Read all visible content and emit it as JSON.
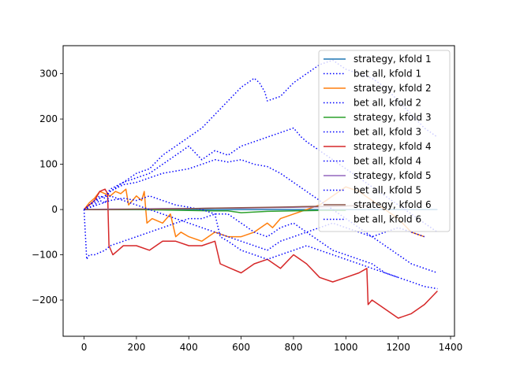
{
  "chart_data": {
    "type": "line",
    "title": "",
    "xlabel": "",
    "ylabel": "",
    "xlim": [
      -80,
      1415
    ],
    "ylim": [
      -280,
      362
    ],
    "xticks": [
      0,
      200,
      400,
      600,
      800,
      1000,
      1200,
      1400
    ],
    "yticks": [
      -200,
      -100,
      0,
      100,
      200,
      300
    ],
    "xtick_labels": [
      "0",
      "200",
      "400",
      "600",
      "800",
      "1000",
      "1200",
      "1400"
    ],
    "ytick_labels": [
      "−200",
      "−100",
      "0",
      "100",
      "200",
      "300"
    ],
    "grid": false,
    "legend_position": "top-right",
    "series": [
      {
        "name": "strategy, kfold 1",
        "color": "#1f77b4",
        "style": "solid",
        "x": [
          0,
          100,
          200,
          400,
          600,
          800,
          1000,
          1200,
          1350
        ],
        "y": [
          0,
          0,
          0,
          0,
          0,
          0,
          0,
          0,
          0
        ]
      },
      {
        "name": "bet all, kfold 1",
        "color": "#0000ff",
        "style": "dotted",
        "x": [
          0,
          20,
          40,
          60,
          80,
          100,
          150,
          200,
          250,
          300,
          350,
          400,
          450,
          500,
          550,
          600,
          650,
          670,
          690,
          700,
          750,
          800,
          850,
          900,
          950,
          1000,
          1050,
          1100,
          1150,
          1200,
          1250,
          1300,
          1350
        ],
        "y": [
          0,
          10,
          20,
          30,
          25,
          40,
          60,
          80,
          90,
          120,
          140,
          160,
          180,
          210,
          240,
          270,
          290,
          280,
          260,
          240,
          250,
          280,
          300,
          320,
          330,
          310,
          300,
          290,
          270,
          240,
          210,
          180,
          160
        ]
      },
      {
        "name": "strategy, kfold 2",
        "color": "#ff7f0e",
        "style": "solid",
        "x": [
          0,
          20,
          40,
          60,
          80,
          100,
          120,
          140,
          160,
          170,
          200,
          220,
          230,
          240,
          260,
          300,
          330,
          350,
          370,
          400,
          450,
          500,
          550,
          600,
          650,
          700,
          720,
          750,
          800,
          850,
          900,
          950,
          1000,
          1050,
          1100,
          1150,
          1200,
          1250,
          1300
        ],
        "y": [
          0,
          15,
          25,
          40,
          35,
          30,
          40,
          35,
          45,
          10,
          30,
          20,
          40,
          -30,
          -20,
          -30,
          -10,
          -60,
          -50,
          -60,
          -70,
          -50,
          -60,
          -60,
          -50,
          -30,
          -40,
          -20,
          -10,
          0,
          10,
          30,
          50,
          40,
          20,
          0,
          -20,
          -50,
          -60
        ]
      },
      {
        "name": "bet all, kfold 2",
        "color": "#0000ff",
        "style": "dotted",
        "x": [
          0,
          20,
          40,
          60,
          80,
          100,
          150,
          200,
          250,
          300,
          350,
          400,
          450,
          500,
          550,
          600,
          650,
          700,
          750,
          800,
          830,
          850,
          900,
          950,
          1000,
          1050,
          1100,
          1150,
          1200,
          1250,
          1300,
          1350
        ],
        "y": [
          0,
          10,
          15,
          25,
          30,
          45,
          60,
          70,
          80,
          100,
          120,
          140,
          110,
          130,
          120,
          140,
          150,
          160,
          170,
          180,
          160,
          150,
          130,
          110,
          90,
          70,
          50,
          30,
          10,
          -10,
          -30,
          -50
        ]
      },
      {
        "name": "strategy, kfold 3",
        "color": "#2ca02c",
        "style": "solid",
        "x": [
          0,
          100,
          200,
          300,
          400,
          500,
          550,
          600,
          700,
          800,
          900,
          1000
        ],
        "y": [
          0,
          0,
          0,
          -1,
          -2,
          -3,
          -3,
          -7,
          -4,
          -3,
          -2,
          -2
        ]
      },
      {
        "name": "bet all, kfold 3",
        "color": "#0000ff",
        "style": "dotted",
        "x": [
          0,
          10,
          20,
          40,
          60,
          80,
          100,
          150,
          200,
          250,
          300,
          350,
          400,
          450,
          500,
          550,
          600,
          650,
          700,
          750,
          800,
          850,
          900,
          950,
          1000,
          1050,
          1100,
          1150,
          1200
        ],
        "y": [
          0,
          -110,
          -100,
          -100,
          -95,
          -90,
          -80,
          -70,
          -60,
          -50,
          -40,
          -30,
          -20,
          -20,
          -10,
          -10,
          -30,
          -50,
          -60,
          -40,
          -30,
          -50,
          -70,
          -90,
          -100,
          -110,
          -120,
          -140,
          -150
        ]
      },
      {
        "name": "strategy, kfold 4",
        "color": "#d62728",
        "style": "solid",
        "x": [
          0,
          20,
          40,
          60,
          80,
          90,
          95,
          110,
          130,
          150,
          200,
          250,
          300,
          350,
          400,
          450,
          500,
          520,
          560,
          600,
          650,
          700,
          750,
          800,
          850,
          900,
          950,
          1000,
          1050,
          1080,
          1085,
          1100,
          1150,
          1200,
          1250,
          1300,
          1350
        ],
        "y": [
          0,
          10,
          20,
          40,
          45,
          35,
          -80,
          -100,
          -90,
          -80,
          -80,
          -90,
          -70,
          -70,
          -80,
          -80,
          -70,
          -120,
          -130,
          -140,
          -120,
          -110,
          -130,
          -100,
          -120,
          -150,
          -160,
          -150,
          -140,
          -130,
          -210,
          -200,
          -220,
          -240,
          -230,
          -210,
          -180
        ]
      },
      {
        "name": "bet all, kfold 4",
        "color": "#0000ff",
        "style": "dotted",
        "x": [
          0,
          20,
          40,
          60,
          80,
          100,
          150,
          200,
          250,
          300,
          350,
          400,
          450,
          500,
          550,
          600,
          650,
          700,
          750,
          800,
          850,
          900,
          950,
          1000,
          1050,
          1100,
          1150,
          1200,
          1250,
          1300,
          1350
        ],
        "y": [
          0,
          10,
          20,
          25,
          30,
          40,
          55,
          60,
          70,
          80,
          85,
          90,
          100,
          110,
          105,
          110,
          100,
          95,
          80,
          60,
          40,
          20,
          0,
          -20,
          -40,
          -60,
          -80,
          -100,
          -120,
          -130,
          -140
        ]
      },
      {
        "name": "strategy, kfold 5",
        "color": "#9467bd",
        "style": "solid",
        "x": [
          0,
          100,
          200,
          300,
          400,
          500,
          600,
          700,
          800,
          900,
          1000
        ],
        "y": [
          0,
          1,
          1,
          2,
          2,
          3,
          3,
          4,
          5,
          6,
          7
        ]
      },
      {
        "name": "bet all, kfold 5",
        "color": "#0000ff",
        "style": "dotted",
        "x": [
          0,
          50,
          100,
          150,
          200,
          250,
          300,
          350,
          400,
          450,
          500,
          520,
          550,
          600,
          650,
          700,
          750,
          800,
          850,
          900,
          950,
          1000,
          1050,
          1100,
          1150,
          1200,
          1250,
          1300,
          1350
        ],
        "y": [
          0,
          10,
          20,
          25,
          20,
          30,
          20,
          10,
          5,
          0,
          -10,
          -60,
          -70,
          -90,
          -100,
          -110,
          -100,
          -90,
          -80,
          -90,
          -100,
          -110,
          -120,
          -130,
          -140,
          -150,
          -160,
          -170,
          -175
        ]
      },
      {
        "name": "strategy, kfold 6",
        "color": "#8c564b",
        "style": "solid",
        "x": [
          0,
          100,
          200,
          300,
          400,
          500,
          600,
          700,
          800,
          900,
          1000,
          1080
        ],
        "y": [
          0,
          0,
          1,
          1,
          2,
          3,
          4,
          5,
          6,
          7,
          8,
          9
        ]
      },
      {
        "name": "bet all, kfold 6",
        "color": "#0000ff",
        "style": "dotted",
        "x": [
          0,
          20,
          40,
          60,
          80,
          100,
          150,
          200,
          250,
          300,
          350,
          400,
          450,
          500,
          550,
          600,
          650,
          700,
          750,
          800,
          850,
          900,
          950,
          1000,
          1050,
          1100,
          1150,
          1200,
          1250,
          1300
        ],
        "y": [
          0,
          5,
          10,
          20,
          15,
          30,
          20,
          10,
          0,
          -10,
          -20,
          -30,
          -40,
          -50,
          -60,
          -70,
          -80,
          -90,
          -70,
          -60,
          -50,
          -40,
          -30,
          -40,
          -50,
          -60,
          -50,
          -40,
          -50,
          -60
        ]
      }
    ]
  }
}
